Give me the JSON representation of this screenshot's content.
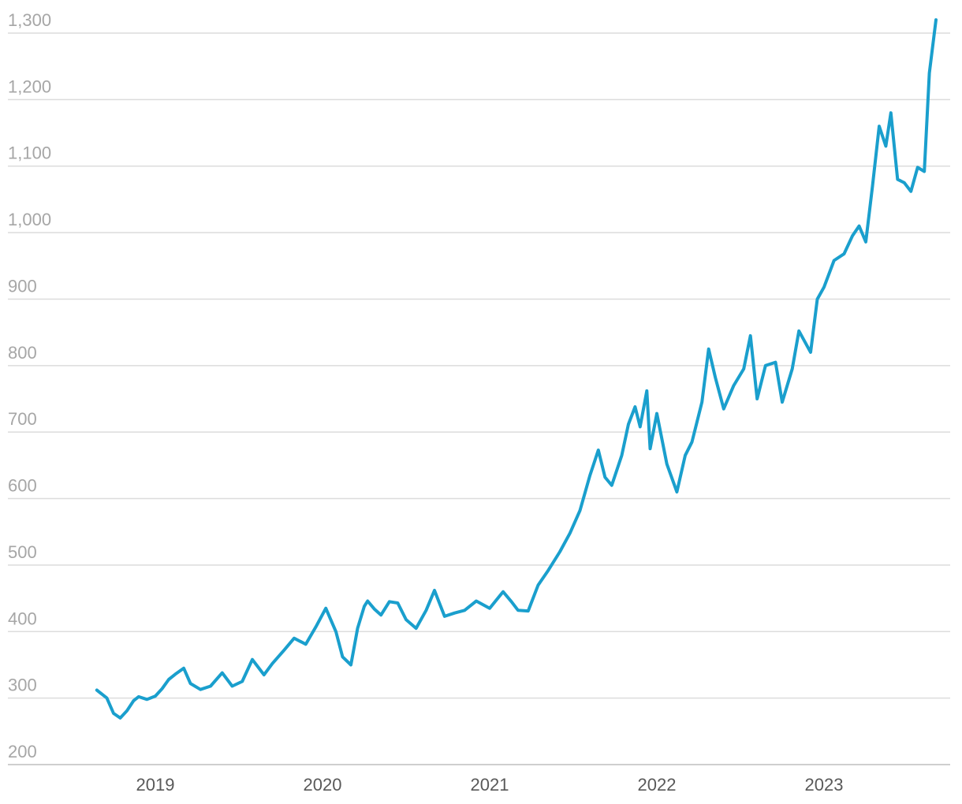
{
  "chart_data": {
    "type": "line",
    "title": "",
    "xlabel": "",
    "ylabel": "",
    "ylim": [
      200,
      1300
    ],
    "y_ticks": [
      "200",
      "300",
      "400",
      "500",
      "600",
      "700",
      "800",
      "900",
      "1,000",
      "1,100",
      "1,200",
      "1,300"
    ],
    "x_ticks": [
      "2019",
      "2020",
      "2021",
      "2022",
      "2023"
    ],
    "grid": true,
    "legend": "none",
    "series": [
      {
        "color": "#1a9fcd",
        "x": [
          2018.65,
          2018.71,
          2018.75,
          2018.79,
          2018.83,
          2018.87,
          2018.9,
          2018.95,
          2019.0,
          2019.04,
          2019.08,
          2019.12,
          2019.17,
          2019.21,
          2019.27,
          2019.33,
          2019.4,
          2019.46,
          2019.52,
          2019.58,
          2019.65,
          2019.7,
          2019.77,
          2019.83,
          2019.9,
          2019.96,
          2020.02,
          2020.08,
          2020.12,
          2020.17,
          2020.21,
          2020.25,
          2020.27,
          2020.31,
          2020.35,
          2020.4,
          2020.45,
          2020.5,
          2020.56,
          2020.62,
          2020.67,
          2020.73,
          2020.79,
          2020.85,
          2020.92,
          2021.0,
          2021.08,
          2021.13,
          2021.17,
          2021.23,
          2021.29,
          2021.35,
          2021.42,
          2021.48,
          2021.54,
          2021.6,
          2021.62,
          2021.65,
          2021.69,
          2021.73,
          2021.79,
          2021.83,
          2021.87,
          2021.9,
          2021.94,
          2021.96,
          2022.0,
          2022.06,
          2022.12,
          2022.17,
          2022.21,
          2022.27,
          2022.31,
          2022.35,
          2022.4,
          2022.46,
          2022.52,
          2022.56,
          2022.6,
          2022.65,
          2022.71,
          2022.75,
          2022.81,
          2022.85,
          2022.92,
          2022.96,
          2023.0,
          2023.06,
          2023.12,
          2023.17,
          2023.21,
          2023.25,
          2023.29,
          2023.33,
          2023.37,
          2023.4,
          2023.44,
          2023.48,
          2023.52,
          2023.56,
          2023.6,
          2023.63,
          2023.67
        ],
        "y": [
          312,
          300,
          277,
          270,
          281,
          296,
          302,
          298,
          303,
          314,
          328,
          336,
          345,
          322,
          313,
          318,
          338,
          318,
          325,
          358,
          335,
          352,
          372,
          390,
          381,
          407,
          435,
          400,
          362,
          350,
          405,
          438,
          446,
          434,
          425,
          445,
          443,
          418,
          405,
          432,
          462,
          423,
          428,
          432,
          446,
          435,
          460,
          445,
          432,
          431,
          470,
          492,
          520,
          548,
          582,
          635,
          650,
          673,
          632,
          620,
          665,
          712,
          738,
          708,
          762,
          675,
          728,
          652,
          610,
          665,
          685,
          745,
          825,
          782,
          735,
          770,
          795,
          845,
          750,
          800,
          805,
          745,
          795,
          852,
          820,
          900,
          918,
          958,
          968,
          995,
          1010,
          986,
          1070,
          1160,
          1130,
          1180,
          1080,
          1075,
          1062,
          1098,
          1092,
          1240,
          1320
        ]
      }
    ]
  }
}
